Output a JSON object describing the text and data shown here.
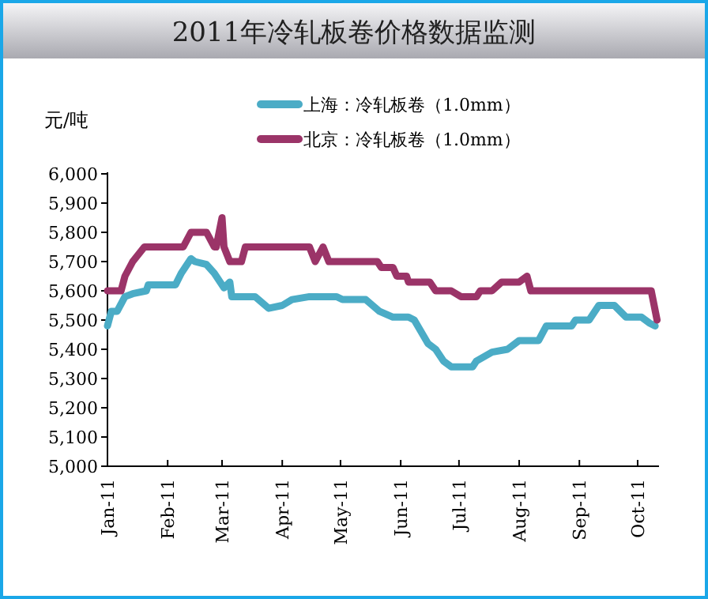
{
  "chart_data": {
    "type": "line",
    "title": "2011年冷轧板卷价格数据监测",
    "ylabel": "元/吨",
    "legend": "top",
    "xlim": [
      "2011-01-01",
      "2011-10-12"
    ],
    "xticks": [
      {
        "value": "2011-01-01",
        "label": "Jan-11"
      },
      {
        "value": "2011-02-01",
        "label": "Feb-11"
      },
      {
        "value": "2011-03-01",
        "label": "Mar-11"
      },
      {
        "value": "2011-04-01",
        "label": "Apr-11"
      },
      {
        "value": "2011-05-01",
        "label": "May-11"
      },
      {
        "value": "2011-06-01",
        "label": "Jun-11"
      },
      {
        "value": "2011-07-01",
        "label": "Jul-11"
      },
      {
        "value": "2011-08-01",
        "label": "Aug-11"
      },
      {
        "value": "2011-09-01",
        "label": "Sep-11"
      },
      {
        "value": "2011-10-01",
        "label": "Oct-11"
      }
    ],
    "ylim": [
      5000,
      6000
    ],
    "yticks": [
      {
        "value": 5000,
        "label": "5,000"
      },
      {
        "value": 5100,
        "label": "5,100"
      },
      {
        "value": 5200,
        "label": "5,200"
      },
      {
        "value": 5300,
        "label": "5,300"
      },
      {
        "value": 5400,
        "label": "5,400"
      },
      {
        "value": 5500,
        "label": "5,500"
      },
      {
        "value": 5600,
        "label": "5,600"
      },
      {
        "value": 5700,
        "label": "5,700"
      },
      {
        "value": 5800,
        "label": "5,800"
      },
      {
        "value": 5900,
        "label": "5,900"
      },
      {
        "value": 6000,
        "label": "6,000"
      }
    ],
    "series": [
      {
        "name": "上海：冷轧板卷（1.0mm）",
        "color": "#4bacc6",
        "x": [
          "2011-01-01",
          "2011-01-03",
          "2011-01-06",
          "2011-01-10",
          "2011-01-14",
          "2011-01-21",
          "2011-01-22",
          "2011-02-05",
          "2011-02-08",
          "2011-02-13",
          "2011-02-15",
          "2011-02-21",
          "2011-02-25",
          "2011-03-02",
          "2011-03-05",
          "2011-03-06",
          "2011-03-18",
          "2011-03-25",
          "2011-04-01",
          "2011-04-06",
          "2011-04-15",
          "2011-04-29",
          "2011-05-02",
          "2011-05-14",
          "2011-05-21",
          "2011-05-28",
          "2011-06-05",
          "2011-06-08",
          "2011-06-15",
          "2011-06-19",
          "2011-06-23",
          "2011-06-27",
          "2011-07-08",
          "2011-07-10",
          "2011-07-18",
          "2011-07-26",
          "2011-08-01",
          "2011-08-11",
          "2011-08-15",
          "2011-08-28",
          "2011-08-30",
          "2011-09-06",
          "2011-09-11",
          "2011-09-19",
          "2011-09-25",
          "2011-10-03",
          "2011-10-07",
          "2011-10-10"
        ],
        "values": [
          5480,
          5530,
          5530,
          5580,
          5590,
          5600,
          5620,
          5620,
          5660,
          5710,
          5700,
          5690,
          5660,
          5610,
          5630,
          5580,
          5580,
          5540,
          5550,
          5570,
          5580,
          5580,
          5570,
          5570,
          5530,
          5510,
          5510,
          5500,
          5420,
          5400,
          5360,
          5340,
          5340,
          5360,
          5390,
          5400,
          5430,
          5430,
          5480,
          5480,
          5500,
          5500,
          5550,
          5550,
          5510,
          5510,
          5490,
          5480
        ]
      },
      {
        "name": "北京：冷轧板卷（1.0mm）",
        "color": "#9b3468",
        "x": [
          "2011-01-01",
          "2011-01-08",
          "2011-01-10",
          "2011-01-14",
          "2011-01-20",
          "2011-02-09",
          "2011-02-13",
          "2011-02-21",
          "2011-02-25",
          "2011-02-26",
          "2011-03-01",
          "2011-03-02",
          "2011-03-05",
          "2011-03-11",
          "2011-03-13",
          "2011-04-15",
          "2011-04-18",
          "2011-04-22",
          "2011-04-25",
          "2011-05-20",
          "2011-05-22",
          "2011-05-28",
          "2011-05-30",
          "2011-06-04",
          "2011-06-05",
          "2011-06-16",
          "2011-06-19",
          "2011-06-27",
          "2011-07-02",
          "2011-07-10",
          "2011-07-12",
          "2011-07-18",
          "2011-07-23",
          "2011-08-01",
          "2011-08-05",
          "2011-08-07",
          "2011-10-08",
          "2011-10-11"
        ],
        "values": [
          5600,
          5600,
          5650,
          5700,
          5750,
          5750,
          5800,
          5800,
          5750,
          5750,
          5850,
          5750,
          5700,
          5700,
          5750,
          5750,
          5700,
          5750,
          5700,
          5700,
          5680,
          5680,
          5650,
          5650,
          5630,
          5630,
          5600,
          5600,
          5580,
          5580,
          5600,
          5600,
          5630,
          5630,
          5650,
          5600,
          5600,
          5500
        ]
      }
    ]
  }
}
